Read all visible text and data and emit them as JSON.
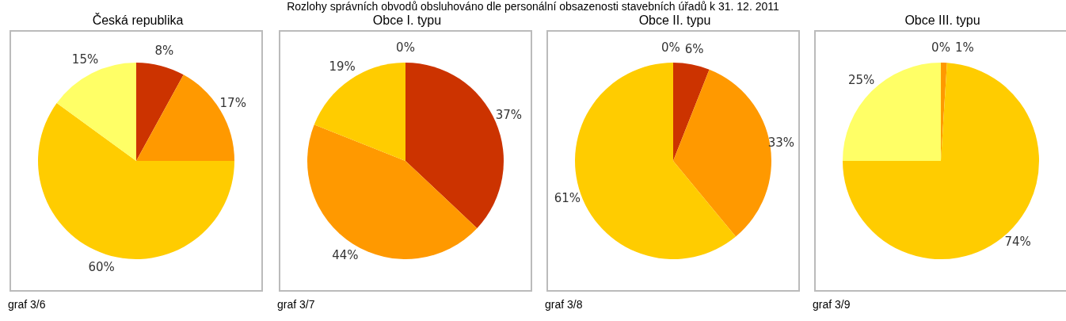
{
  "chart_data": [
    {
      "type": "pie",
      "title": "Česká republika",
      "categories": [
        null,
        null,
        null,
        null
      ],
      "values": [
        8,
        17,
        60,
        15
      ],
      "colors": [
        "#cc3300",
        "#ff9900",
        "#ffcc00",
        "#ffff66"
      ],
      "value_labels": [
        "8%",
        "17%",
        "60%",
        "15%"
      ],
      "annotations": [
        "Rozlohy správních obvodů obsluhováno dle personální obsazenosti stavebních úřadů k 31. 12. 2011",
        "graf 3/6"
      ]
    },
    {
      "type": "pie",
      "title": "Obce I. typu",
      "categories": [
        null,
        null,
        null,
        null
      ],
      "values": [
        37,
        44,
        19,
        0
      ],
      "colors": [
        "#cc3300",
        "#ff9900",
        "#ffcc00",
        "#ffff66"
      ],
      "value_labels": [
        "37%",
        "44%",
        "19%",
        "0%"
      ],
      "annotations": [
        "graf 3/7"
      ]
    },
    {
      "type": "pie",
      "title": "Obce II. typu",
      "categories": [
        null,
        null,
        null,
        null
      ],
      "values": [
        6,
        33,
        61,
        0
      ],
      "colors": [
        "#cc3300",
        "#ff9900",
        "#ffcc00",
        "#ffff66"
      ],
      "value_labels": [
        "6%",
        "33%",
        "61%",
        "0%"
      ],
      "annotations": [
        "graf 3/8"
      ]
    },
    {
      "type": "pie",
      "title": "Obce III. typu",
      "categories": [
        null,
        null,
        null,
        null
      ],
      "values": [
        0,
        1,
        74,
        25
      ],
      "colors": [
        "#cc3300",
        "#ff9900",
        "#ffcc00",
        "#ffff66"
      ],
      "value_labels": [
        "0%",
        "1%",
        "74%",
        "25%"
      ],
      "annotations": [
        "graf 3/9"
      ]
    }
  ]
}
